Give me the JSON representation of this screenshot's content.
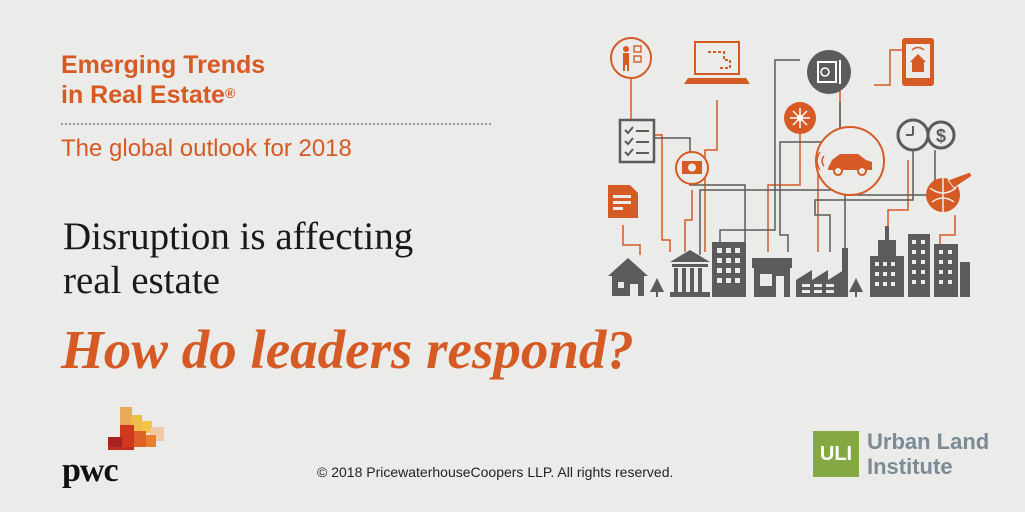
{
  "header": {
    "report_title_line1": "Emerging Trends",
    "report_title_line2": "in Real Estate",
    "registered_mark": "®",
    "subtitle": "The global outlook for 2018"
  },
  "main": {
    "headline_line1": "Disruption is affecting",
    "headline_line2": "real estate",
    "question": "How do leaders respond?"
  },
  "footer": {
    "copyright": "© 2018 PricewaterhouseCoopers LLP. All rights reserved.",
    "pwc_logo_text": "pwc",
    "uli_badge": "ULI",
    "uli_name_line1": "Urban Land",
    "uli_name_line2": "Institute"
  },
  "illustration": {
    "icons": [
      "business-person-icon",
      "laptop-icon",
      "safe-vault-icon",
      "smart-home-tablet-icon",
      "checklist-icon",
      "network-hub-icon",
      "clock-icon",
      "dollar-icon",
      "currency-icon",
      "connected-car-icon",
      "document-icon",
      "globe-plane-icon",
      "house-icon",
      "tree-icon",
      "bank-building-icon",
      "office-building-icon",
      "store-icon",
      "factory-icon",
      "skyscraper-icon"
    ]
  },
  "colors": {
    "accent": "#d65a24",
    "background": "#ebebea",
    "icon_gray": "#5b5b5b",
    "uli_green": "#85a942",
    "uli_gray": "#7c8a95"
  }
}
